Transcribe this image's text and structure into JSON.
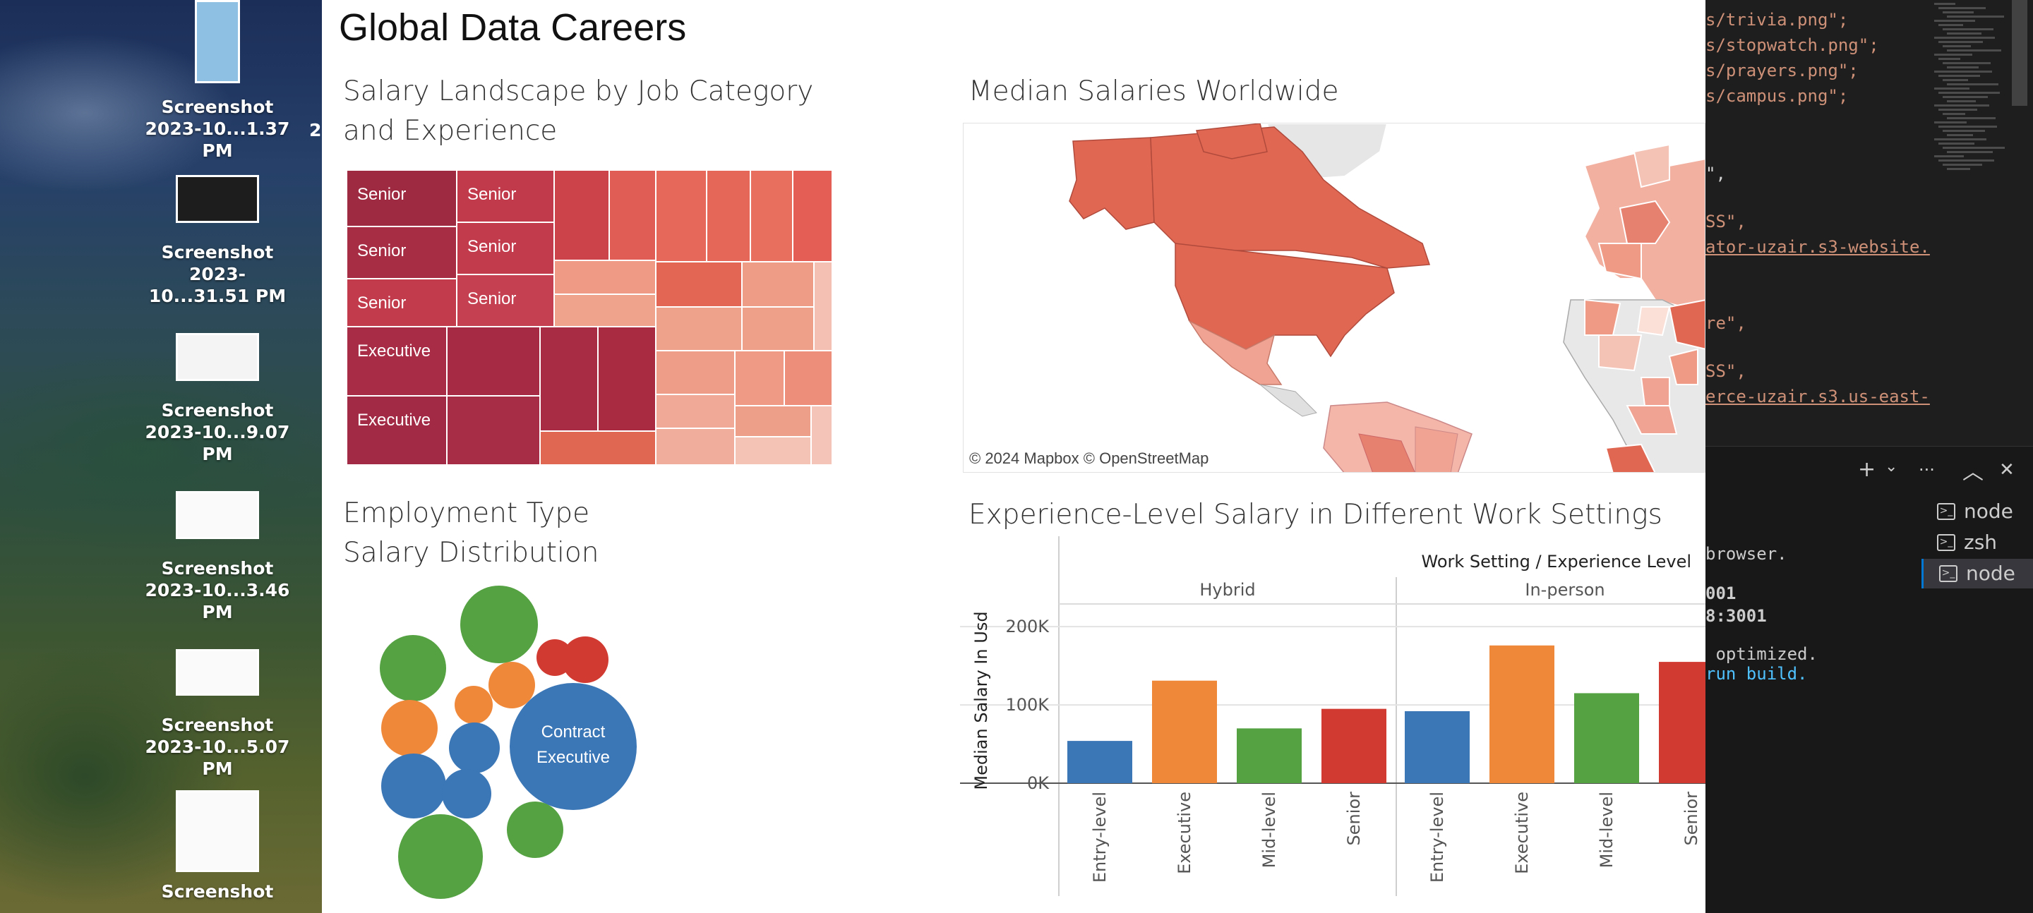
{
  "desktop": {
    "items": [
      {
        "label_1": "Screenshot",
        "label_2": "2023-10...1.37 PM"
      },
      {
        "label_1": "Screenshot",
        "label_2": "2023-10...31.51 PM"
      },
      {
        "label_1": "Screenshot",
        "label_2": "2023-10...9.07 PM"
      },
      {
        "label_1": "Screenshot",
        "label_2": "2023-10...3.46 PM"
      },
      {
        "label_1": "Screenshot",
        "label_2": "2023-10...5.07 PM"
      },
      {
        "label_1": "Screenshot",
        "label_2": ""
      }
    ],
    "edge_glyph": "2"
  },
  "dashboard": {
    "title": "Global Data Careers",
    "treemap": {
      "title": "Salary Landscape by Job Category\nand Experience",
      "labels": [
        "Senior",
        "Senior",
        "Senior",
        "Senior",
        "Senior",
        "Senior",
        "Executive",
        "Executive"
      ]
    },
    "map": {
      "title": "Median Salaries Worldwide",
      "attribution": "© 2024 Mapbox  © OpenStreetMap"
    },
    "bubbles": {
      "title": "Employment Type\nSalary Distribution",
      "label_line_1": "Contract",
      "label_line_2": "Executive"
    },
    "bars_title": "Experience-Level Salary in Different Work Settings"
  },
  "chart_data": {
    "type": "bar",
    "title": "Experience-Level Salary in Different Work Settings",
    "header": "Work Setting / Experience Level",
    "ylabel": "Median Salary In Usd",
    "ylim": [
      0,
      220000
    ],
    "yticks": [
      0,
      100000,
      200000
    ],
    "ytick_labels": [
      "0K",
      "100K",
      "200K"
    ],
    "panels": [
      "Hybrid",
      "In-person"
    ],
    "categories": [
      "Entry-level",
      "Executive",
      "Mid-level",
      "Senior"
    ],
    "colors": [
      "#3b76b6",
      "#f0883a",
      "#55a243",
      "#d13a31"
    ],
    "series": [
      {
        "name": "Hybrid",
        "values": [
          54000,
          131000,
          70000,
          95000
        ]
      },
      {
        "name": "In-person",
        "values": [
          92000,
          176000,
          115000,
          155000
        ]
      }
    ]
  },
  "editor": {
    "code_lines": [
      {
        "text": "s/trivia.png\";",
        "kind": "str"
      },
      {
        "text": "s/stopwatch.png\";",
        "kind": "str"
      },
      {
        "text": "s/prayers.png\";",
        "kind": "str"
      },
      {
        "text": "s/campus.png\";",
        "kind": "str"
      },
      {
        "text": "\",",
        "kind": "pun"
      },
      {
        "text": "SS\",",
        "kind": "str"
      },
      {
        "text": "ator-uzair.s3-website.",
        "kind": "link"
      },
      {
        "text": "re\",",
        "kind": "str"
      },
      {
        "text": "SS\",",
        "kind": "str"
      },
      {
        "text": "erce-uzair.s3.us-east-",
        "kind": "link"
      }
    ],
    "terminal": {
      "lines": [
        "browser.",
        "001",
        "8:3001",
        " optimized.",
        "run build."
      ],
      "tabs": [
        "node",
        "zsh",
        "node"
      ],
      "active_tab": 2,
      "buttons": {
        "add": "+",
        "chevron": "⌄",
        "more": "···",
        "maximize": "︿",
        "close": "✕"
      }
    }
  }
}
